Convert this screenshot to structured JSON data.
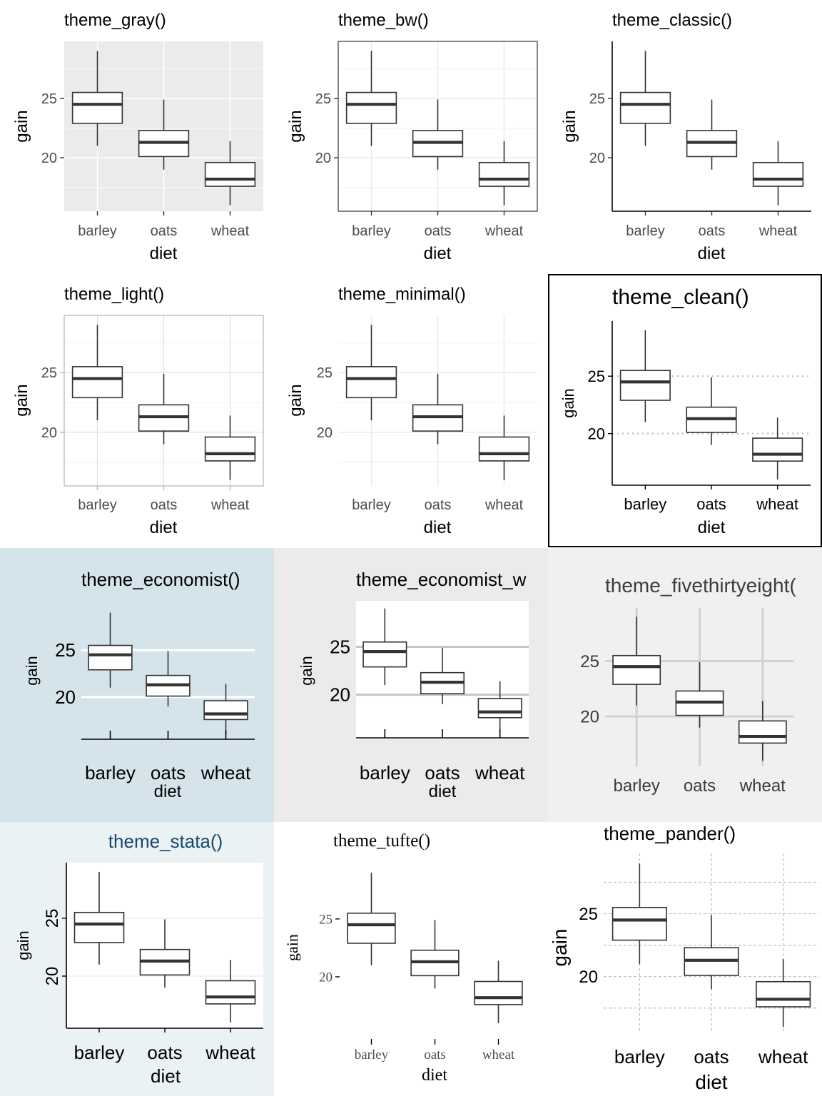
{
  "chart_data": [
    {
      "type": "box",
      "theme_key": "gray",
      "title": "theme_gray()",
      "xlabel": "diet",
      "ylabel": "gain",
      "categories": [
        "barley",
        "oats",
        "wheat"
      ],
      "yticks": [
        20,
        25
      ],
      "ylim": [
        15.5,
        29.8
      ],
      "boxes": [
        {
          "label": "barley",
          "min": 21.0,
          "q1": 22.9,
          "median": 24.5,
          "q3": 25.5,
          "max": 29.0
        },
        {
          "label": "oats",
          "min": 19.0,
          "q1": 20.1,
          "median": 21.3,
          "q3": 22.3,
          "max": 24.9
        },
        {
          "label": "wheat",
          "min": 16.0,
          "q1": 17.6,
          "median": 18.2,
          "q3": 19.6,
          "max": 21.4
        }
      ]
    },
    {
      "type": "box",
      "theme_key": "bw",
      "title": "theme_bw()",
      "xlabel": "diet",
      "ylabel": "gain",
      "categories": [
        "barley",
        "oats",
        "wheat"
      ],
      "yticks": [
        20,
        25
      ],
      "ylim": [
        15.5,
        29.8
      ],
      "boxes": [
        {
          "label": "barley",
          "min": 21.0,
          "q1": 22.9,
          "median": 24.5,
          "q3": 25.5,
          "max": 29.0
        },
        {
          "label": "oats",
          "min": 19.0,
          "q1": 20.1,
          "median": 21.3,
          "q3": 22.3,
          "max": 24.9
        },
        {
          "label": "wheat",
          "min": 16.0,
          "q1": 17.6,
          "median": 18.2,
          "q3": 19.6,
          "max": 21.4
        }
      ]
    },
    {
      "type": "box",
      "theme_key": "classic",
      "title": "theme_classic()",
      "xlabel": "diet",
      "ylabel": "gain",
      "categories": [
        "barley",
        "oats",
        "wheat"
      ],
      "yticks": [
        20,
        25
      ],
      "ylim": [
        15.5,
        29.8
      ],
      "boxes": [
        {
          "label": "barley",
          "min": 21.0,
          "q1": 22.9,
          "median": 24.5,
          "q3": 25.5,
          "max": 29.0
        },
        {
          "label": "oats",
          "min": 19.0,
          "q1": 20.1,
          "median": 21.3,
          "q3": 22.3,
          "max": 24.9
        },
        {
          "label": "wheat",
          "min": 16.0,
          "q1": 17.6,
          "median": 18.2,
          "q3": 19.6,
          "max": 21.4
        }
      ]
    },
    {
      "type": "box",
      "theme_key": "light",
      "title": "theme_light()",
      "xlabel": "diet",
      "ylabel": "gain",
      "categories": [
        "barley",
        "oats",
        "wheat"
      ],
      "yticks": [
        20,
        25
      ],
      "ylim": [
        15.5,
        29.8
      ],
      "boxes": [
        {
          "label": "barley",
          "min": 21.0,
          "q1": 22.9,
          "median": 24.5,
          "q3": 25.5,
          "max": 29.0
        },
        {
          "label": "oats",
          "min": 19.0,
          "q1": 20.1,
          "median": 21.3,
          "q3": 22.3,
          "max": 24.9
        },
        {
          "label": "wheat",
          "min": 16.0,
          "q1": 17.6,
          "median": 18.2,
          "q3": 19.6,
          "max": 21.4
        }
      ]
    },
    {
      "type": "box",
      "theme_key": "minimal",
      "title": "theme_minimal()",
      "xlabel": "diet",
      "ylabel": "gain",
      "categories": [
        "barley",
        "oats",
        "wheat"
      ],
      "yticks": [
        20,
        25
      ],
      "ylim": [
        15.5,
        29.8
      ],
      "boxes": [
        {
          "label": "barley",
          "min": 21.0,
          "q1": 22.9,
          "median": 24.5,
          "q3": 25.5,
          "max": 29.0
        },
        {
          "label": "oats",
          "min": 19.0,
          "q1": 20.1,
          "median": 21.3,
          "q3": 22.3,
          "max": 24.9
        },
        {
          "label": "wheat",
          "min": 16.0,
          "q1": 17.6,
          "median": 18.2,
          "q3": 19.6,
          "max": 21.4
        }
      ]
    },
    {
      "type": "box",
      "theme_key": "clean",
      "title": "theme_clean()",
      "xlabel": "diet",
      "ylabel": "gain",
      "categories": [
        "barley",
        "oats",
        "wheat"
      ],
      "yticks": [
        20,
        25
      ],
      "ylim": [
        15.5,
        29.8
      ],
      "boxes": [
        {
          "label": "barley",
          "min": 21.0,
          "q1": 22.9,
          "median": 24.5,
          "q3": 25.5,
          "max": 29.0
        },
        {
          "label": "oats",
          "min": 19.0,
          "q1": 20.1,
          "median": 21.3,
          "q3": 22.3,
          "max": 24.9
        },
        {
          "label": "wheat",
          "min": 16.0,
          "q1": 17.6,
          "median": 18.2,
          "q3": 19.6,
          "max": 21.4
        }
      ]
    },
    {
      "type": "box",
      "theme_key": "economist",
      "title": "theme_economist()",
      "xlabel": "diet",
      "ylabel": "gain",
      "categories": [
        "barley",
        "oats",
        "wheat"
      ],
      "yticks": [
        20,
        25
      ],
      "ylim": [
        15.5,
        29.8
      ],
      "boxes": [
        {
          "label": "barley",
          "min": 21.0,
          "q1": 22.9,
          "median": 24.5,
          "q3": 25.5,
          "max": 29.0
        },
        {
          "label": "oats",
          "min": 19.0,
          "q1": 20.1,
          "median": 21.3,
          "q3": 22.3,
          "max": 24.9
        },
        {
          "label": "wheat",
          "min": 16.0,
          "q1": 17.6,
          "median": 18.2,
          "q3": 19.6,
          "max": 21.4
        }
      ]
    },
    {
      "type": "box",
      "theme_key": "economist_white",
      "title": "theme_economist_w",
      "xlabel": "diet",
      "ylabel": "gain",
      "categories": [
        "barley",
        "oats",
        "wheat"
      ],
      "yticks": [
        20,
        25
      ],
      "ylim": [
        15.5,
        29.8
      ],
      "boxes": [
        {
          "label": "barley",
          "min": 21.0,
          "q1": 22.9,
          "median": 24.5,
          "q3": 25.5,
          "max": 29.0
        },
        {
          "label": "oats",
          "min": 19.0,
          "q1": 20.1,
          "median": 21.3,
          "q3": 22.3,
          "max": 24.9
        },
        {
          "label": "wheat",
          "min": 16.0,
          "q1": 17.6,
          "median": 18.2,
          "q3": 19.6,
          "max": 21.4
        }
      ]
    },
    {
      "type": "box",
      "theme_key": "fivethirtyeight",
      "title": "theme_fivethirtyeight(",
      "xlabel": "",
      "ylabel": "",
      "categories": [
        "barley",
        "oats",
        "wheat"
      ],
      "yticks": [
        20,
        25
      ],
      "ylim": [
        15.5,
        29.8
      ],
      "boxes": [
        {
          "label": "barley",
          "min": 21.0,
          "q1": 22.9,
          "median": 24.5,
          "q3": 25.5,
          "max": 29.0
        },
        {
          "label": "oats",
          "min": 19.0,
          "q1": 20.1,
          "median": 21.3,
          "q3": 22.3,
          "max": 24.9
        },
        {
          "label": "wheat",
          "min": 16.0,
          "q1": 17.6,
          "median": 18.2,
          "q3": 19.6,
          "max": 21.4
        }
      ]
    },
    {
      "type": "box",
      "theme_key": "stata",
      "title": "theme_stata()",
      "xlabel": "diet",
      "ylabel": "gain",
      "categories": [
        "barley",
        "oats",
        "wheat"
      ],
      "yticks": [
        20,
        25
      ],
      "ylim": [
        15.5,
        29.8
      ],
      "boxes": [
        {
          "label": "barley",
          "min": 21.0,
          "q1": 22.9,
          "median": 24.5,
          "q3": 25.5,
          "max": 29.0
        },
        {
          "label": "oats",
          "min": 19.0,
          "q1": 20.1,
          "median": 21.3,
          "q3": 22.3,
          "max": 24.9
        },
        {
          "label": "wheat",
          "min": 16.0,
          "q1": 17.6,
          "median": 18.2,
          "q3": 19.6,
          "max": 21.4
        }
      ]
    },
    {
      "type": "box",
      "theme_key": "tufte",
      "title": "theme_tufte()",
      "xlabel": "diet",
      "ylabel": "gain",
      "categories": [
        "barley",
        "oats",
        "wheat"
      ],
      "yticks": [
        20,
        25
      ],
      "ylim": [
        15.5,
        29.8
      ],
      "boxes": [
        {
          "label": "barley",
          "min": 21.0,
          "q1": 22.9,
          "median": 24.5,
          "q3": 25.5,
          "max": 29.0
        },
        {
          "label": "oats",
          "min": 19.0,
          "q1": 20.1,
          "median": 21.3,
          "q3": 22.3,
          "max": 24.9
        },
        {
          "label": "wheat",
          "min": 16.0,
          "q1": 17.6,
          "median": 18.2,
          "q3": 19.6,
          "max": 21.4
        }
      ]
    },
    {
      "type": "box",
      "theme_key": "pander",
      "title": "theme_pander()",
      "xlabel": "diet",
      "ylabel": "gain",
      "categories": [
        "barley",
        "oats",
        "wheat"
      ],
      "yticks": [
        20,
        25
      ],
      "ylim": [
        15.5,
        29.8
      ],
      "boxes": [
        {
          "label": "barley",
          "min": 21.0,
          "q1": 22.9,
          "median": 24.5,
          "q3": 25.5,
          "max": 29.0
        },
        {
          "label": "oats",
          "min": 19.0,
          "q1": 20.1,
          "median": 21.3,
          "q3": 22.3,
          "max": 24.9
        },
        {
          "label": "wheat",
          "min": 16.0,
          "q1": 17.6,
          "median": 18.2,
          "q3": 19.6,
          "max": 21.4
        }
      ]
    }
  ]
}
